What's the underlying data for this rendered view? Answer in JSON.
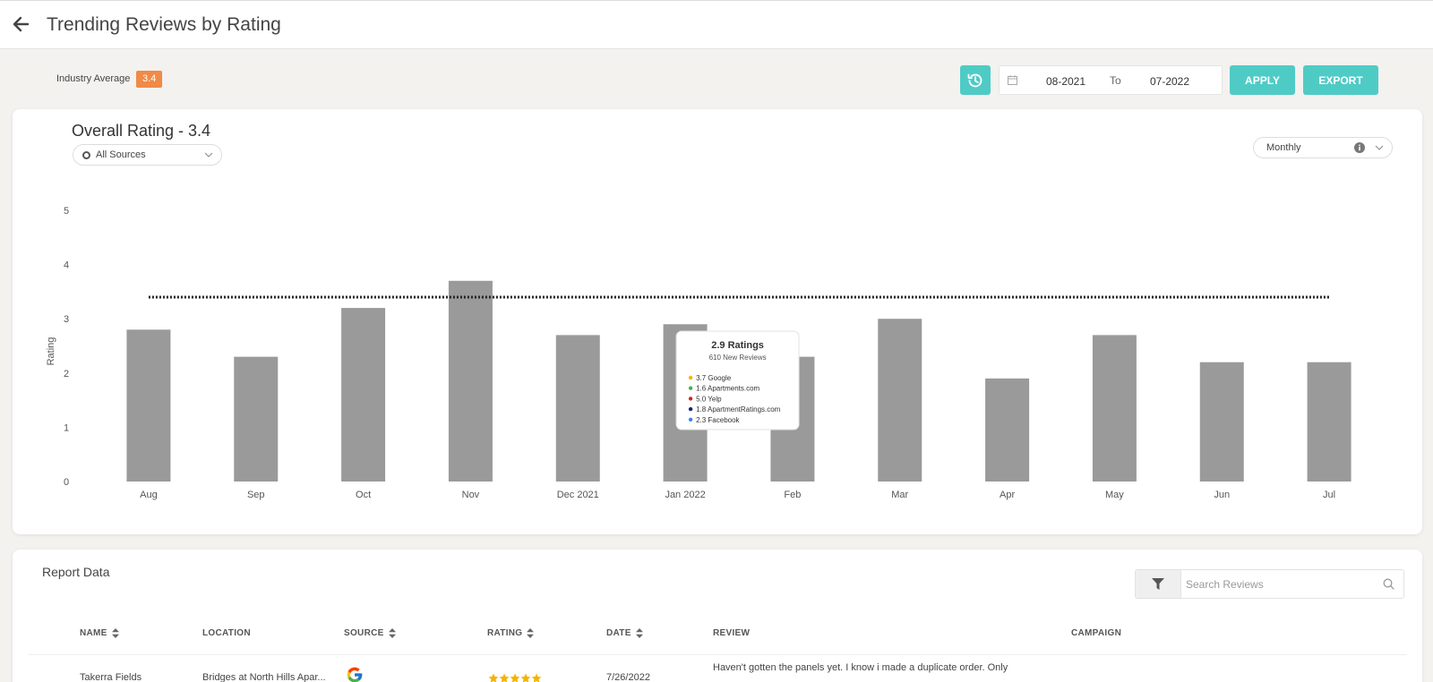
{
  "header": {
    "title": "Trending Reviews by Rating"
  },
  "industry": {
    "label": "Industry Average",
    "value": "3.4"
  },
  "filters": {
    "from": "08-2021",
    "to_label": "To",
    "to": "07-2022",
    "apply": "APPLY",
    "export": "EXPORT"
  },
  "chart_card": {
    "title": "Overall Rating - 3.4",
    "source_select": "All Sources",
    "period_select": "Monthly"
  },
  "chart_data": {
    "type": "bar",
    "categories": [
      "Aug",
      "Sep",
      "Oct",
      "Nov",
      "Dec 2021",
      "Jan 2022",
      "Feb",
      "Mar",
      "Apr",
      "May",
      "Jun",
      "Jul"
    ],
    "values": [
      2.8,
      2.3,
      3.2,
      3.7,
      2.7,
      2.9,
      2.3,
      3.0,
      1.9,
      2.7,
      2.2,
      2.2
    ],
    "reference_line": 3.4,
    "ylabel": "Rating",
    "ylim": [
      0,
      5
    ],
    "yticks": [
      "0",
      "1",
      "2",
      "3",
      "4",
      "5"
    ],
    "bar_color": "#9a9a9a",
    "tooltip": {
      "title": "2.9 Ratings",
      "subtitle": "610 New Reviews",
      "items": [
        {
          "text": "3.7 Google",
          "color": "#f4b400"
        },
        {
          "text": "1.6 Apartments.com",
          "color": "#4caf50"
        },
        {
          "text": "5.0 Yelp",
          "color": "#d32323"
        },
        {
          "text": "1.8 ApartmentRatings.com",
          "color": "#1a237e"
        },
        {
          "text": "2.3 Facebook",
          "color": "#3b82f6"
        }
      ]
    }
  },
  "report": {
    "title": "Report Data",
    "search_placeholder": "Search Reviews",
    "columns": [
      "NAME",
      "LOCATION",
      "SOURCE",
      "RATING",
      "DATE",
      "REVIEW",
      "CAMPAIGN"
    ],
    "rows": [
      {
        "name": "Takerra Fields",
        "location": "Bridges at North Hills Apar...",
        "source": "google-icon",
        "rating": 5,
        "date": "7/26/2022",
        "review": "Haven't gotten the panels yet. I know i made a duplicate order. Only",
        "campaign": ""
      }
    ]
  },
  "colors": {
    "accent": "#4fcbc6",
    "badge": "#f08a46"
  }
}
